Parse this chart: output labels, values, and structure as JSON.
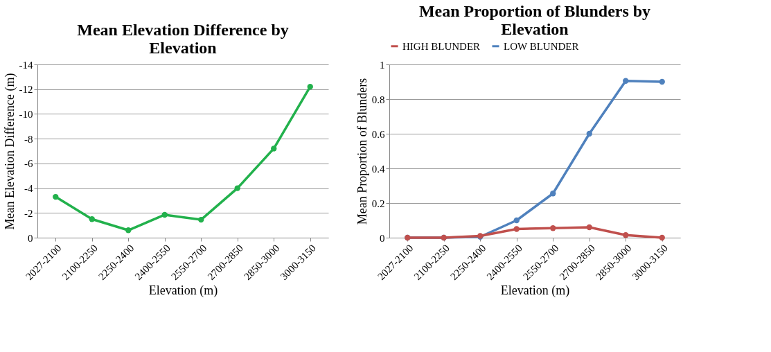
{
  "chart_data": [
    {
      "type": "line",
      "title": "Mean Elevation Difference by Elevation",
      "xlabel": "Elevation (m)",
      "ylabel": "Mean Elevation Difference (m)",
      "categories": [
        "2027-2100",
        "2100-2250",
        "2250-2400",
        "2400-2550",
        "2550-2700",
        "2700-2850",
        "2850-3000",
        "3000-3150"
      ],
      "series": [
        {
          "color": "#22b14c",
          "values": [
            -3.3,
            -1.5,
            -0.6,
            -1.85,
            -1.45,
            -4.0,
            -7.2,
            -12.2
          ]
        }
      ],
      "ylim": [
        0,
        -14
      ],
      "yticks": [
        0,
        -2,
        -4,
        -6,
        -8,
        -10,
        -12,
        -14
      ],
      "grid": "y",
      "marker": "circle",
      "legend": false
    },
    {
      "type": "line",
      "title": "Mean Proportion of Blunders by Elevation",
      "xlabel": "Elevation (m)",
      "ylabel": "Mean Proportion of Blunders",
      "categories": [
        "2027-2100",
        "2100-2250",
        "2250-2400",
        "2400-2550",
        "2550-2700",
        "2700-2850",
        "2850-3000",
        "3000-3150"
      ],
      "series": [
        {
          "name": "HIGH BLUNDER",
          "color": "#c0504d",
          "values": [
            0,
            0,
            0.01,
            0.05,
            0.055,
            0.06,
            0.015,
            0
          ]
        },
        {
          "name": "LOW BLUNDER",
          "color": "#4f81bd",
          "values": [
            0,
            0,
            0.005,
            0.1,
            0.255,
            0.6,
            0.905,
            0.9
          ]
        }
      ],
      "ylim": [
        0,
        1
      ],
      "yticks": [
        0,
        0.2,
        0.4,
        0.6,
        0.8,
        1
      ],
      "grid": "y",
      "marker": "circle",
      "legend": "top"
    }
  ]
}
